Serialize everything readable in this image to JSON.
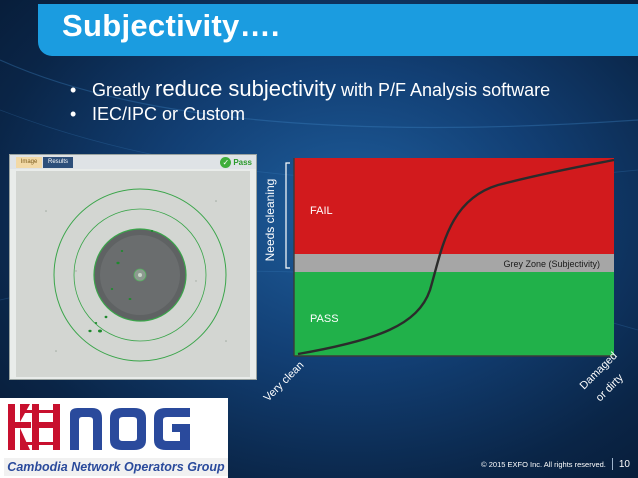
{
  "title": "Subjectivity….",
  "bullets": [
    {
      "pre": "Greatly ",
      "big": "reduce subjectivity",
      "post": " with P/F Analysis software"
    },
    {
      "pre": "IEC/IPC or Custom",
      "big": "",
      "post": ""
    }
  ],
  "scope_panel": {
    "tab_image": "Image",
    "tab_results": "Results",
    "result_label": "Pass"
  },
  "chart": {
    "fail_label": "FAIL",
    "pass_label": "PASS",
    "grey_zone_label": "Grey Zone (Subjectivity)",
    "y_axis_label": "Needs cleaning",
    "x_start_label": "Very clean",
    "x_end_label_1": "Damaged",
    "x_end_label_2": "or dirty",
    "colors": {
      "fail": "#d21a1d",
      "pass": "#21b14a",
      "grey": "#a6a6a6"
    }
  },
  "logo": {
    "caption": "Cambodia Network Operators Group"
  },
  "footer": {
    "copyright": "© 2015 EXFO Inc. All rights reserved.",
    "page": "10"
  }
}
